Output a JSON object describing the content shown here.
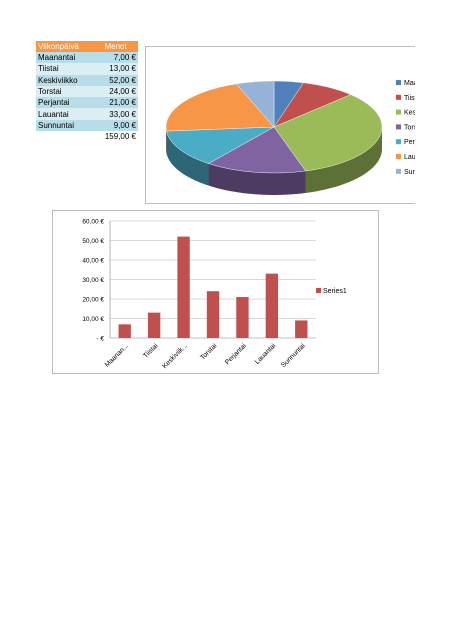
{
  "table": {
    "headers": [
      "Viikonpäivä",
      "Menot"
    ],
    "rows": [
      {
        "day": "Maanantai",
        "value": "7,00 €"
      },
      {
        "day": "Tiistai",
        "value": "13,00 €"
      },
      {
        "day": "Keskiviikko",
        "value": "52,00 €"
      },
      {
        "day": "Torstai",
        "value": "24,00 €"
      },
      {
        "day": "Perjantai",
        "value": "21,00 €"
      },
      {
        "day": "Lauantai",
        "value": "33,00 €"
      },
      {
        "day": "Sunnuntai",
        "value": "9,00 €"
      }
    ],
    "total": "159,00 €",
    "header_color": "#f79646",
    "band_colors": [
      "#b7dde8",
      "#daeef3"
    ]
  },
  "chart_data": [
    {
      "type": "pie",
      "style": "3d",
      "categories": [
        "Maanantai",
        "Tiistai",
        "Keskiviikko",
        "Torstai",
        "Perjantai",
        "Lauantai",
        "Sunnuntai"
      ],
      "values": [
        7,
        13,
        52,
        24,
        21,
        33,
        9
      ],
      "colors": [
        "#4f81bd",
        "#c0504d",
        "#9bbb59",
        "#8064a2",
        "#4bacc6",
        "#f79646",
        "#95b3d7"
      ],
      "legend_entries": [
        "Maanantai",
        "Tiistai",
        "Keskiviikko",
        "Torstai",
        "Perjantai",
        "Lauantai",
        "Sunnuntai"
      ],
      "legend_position": "right"
    },
    {
      "type": "bar",
      "categories": [
        "Maanantai",
        "Tiistai",
        "Keskiviikko",
        "Torstai",
        "Perjantai",
        "Lauantai",
        "Sunnuntai"
      ],
      "category_labels": [
        "Maanan...",
        "Tiistai",
        "Keskiviik...",
        "Torstai",
        "Perjantai",
        "Lauantai",
        "Sunnuntai"
      ],
      "series": [
        {
          "name": "Series1",
          "values": [
            7,
            13,
            52,
            24,
            21,
            33,
            9
          ],
          "color": "#c0504d"
        }
      ],
      "ylim": [
        0,
        60
      ],
      "yticks": [
        {
          "value": 0,
          "label": "-   €"
        },
        {
          "value": 10,
          "label": "10,00 €"
        },
        {
          "value": 20,
          "label": "20,00 €"
        },
        {
          "value": 30,
          "label": "30,00 €"
        },
        {
          "value": 40,
          "label": "40,00 €"
        },
        {
          "value": 50,
          "label": "50,00 €"
        },
        {
          "value": 60,
          "label": "60,00 €"
        }
      ],
      "grid": true,
      "legend_position": "right"
    }
  ]
}
